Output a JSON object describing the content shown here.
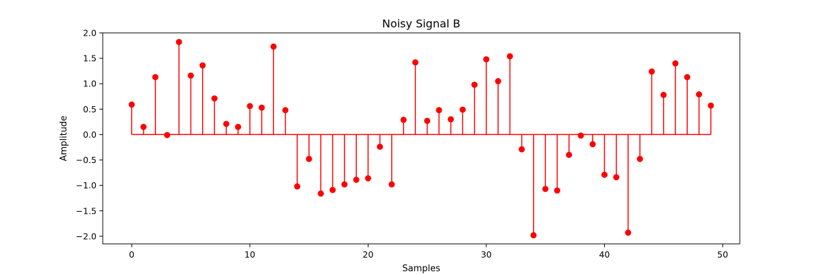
{
  "chart_data": {
    "type": "stem",
    "title": "Noisy Signal B",
    "xlabel": "Samples",
    "ylabel": "Amplitude",
    "xlim": [
      -2.45,
      51.45
    ],
    "ylim": [
      -2.15,
      2.0
    ],
    "xticks": [
      0,
      10,
      20,
      30,
      40,
      50
    ],
    "yticks": [
      -2.0,
      -1.5,
      -1.0,
      -0.5,
      0.0,
      0.5,
      1.0,
      1.5,
      2.0
    ],
    "ytick_labels": [
      "−2.0",
      "−1.5",
      "−1.0",
      "−0.5",
      "0.0",
      "0.5",
      "1.0",
      "1.5",
      "2.0"
    ],
    "grid": false,
    "color": "#ff0000",
    "series": [
      {
        "x": [
          0,
          1,
          2,
          3,
          4,
          5,
          6,
          7,
          8,
          9,
          10,
          11,
          12,
          13,
          14,
          15,
          16,
          17,
          18,
          19,
          20,
          21,
          22,
          23,
          24,
          25,
          26,
          27,
          28,
          29,
          30,
          31,
          32,
          33,
          34,
          35,
          36,
          37,
          38,
          39,
          40,
          41,
          42,
          43,
          44,
          45,
          46,
          47,
          48,
          49
        ],
        "values": [
          0.59,
          0.15,
          1.13,
          -0.01,
          1.82,
          1.16,
          1.36,
          0.71,
          0.21,
          0.15,
          0.56,
          0.53,
          1.73,
          0.48,
          -1.02,
          -0.48,
          -1.16,
          -1.09,
          -0.98,
          -0.89,
          -0.86,
          -0.24,
          -0.98,
          0.29,
          1.42,
          0.27,
          0.48,
          0.3,
          0.49,
          0.98,
          1.48,
          1.05,
          1.54,
          -0.29,
          -1.98,
          -1.07,
          -1.1,
          -0.4,
          -0.02,
          -0.19,
          -0.79,
          -0.84,
          -1.93,
          -0.48,
          1.24,
          0.78,
          1.4,
          1.13,
          0.79,
          0.57
        ]
      }
    ]
  }
}
